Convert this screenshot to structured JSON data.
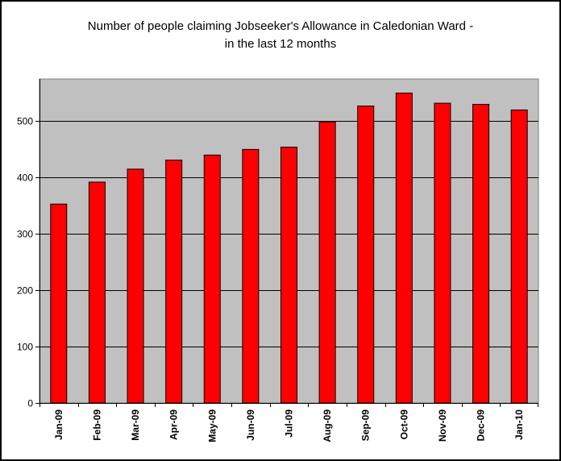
{
  "chart_data": {
    "type": "bar",
    "title_lines": [
      "Number of people claiming Jobseeker's Allowance in Caledonian Ward -",
      "in the last 12 months"
    ],
    "categories": [
      "Jan-09",
      "Feb-09",
      "Mar-09",
      "Apr-09",
      "May-09",
      "Jun-09",
      "Jul-09",
      "Aug-09",
      "Sep-09",
      "Oct-09",
      "Nov-09",
      "Dec-09",
      "Jan-10"
    ],
    "values": [
      353,
      392,
      415,
      431,
      440,
      450,
      454,
      499,
      527,
      550,
      532,
      530,
      520
    ],
    "ylim": [
      0,
      575
    ],
    "yticks": [
      0,
      100,
      200,
      300,
      400,
      500
    ],
    "grid": true,
    "legend": "none",
    "colors": {
      "bar": "#ff0000",
      "bar_edge": "#000000",
      "plot_background": "#c0c0c0",
      "gridline": "#000000"
    }
  }
}
